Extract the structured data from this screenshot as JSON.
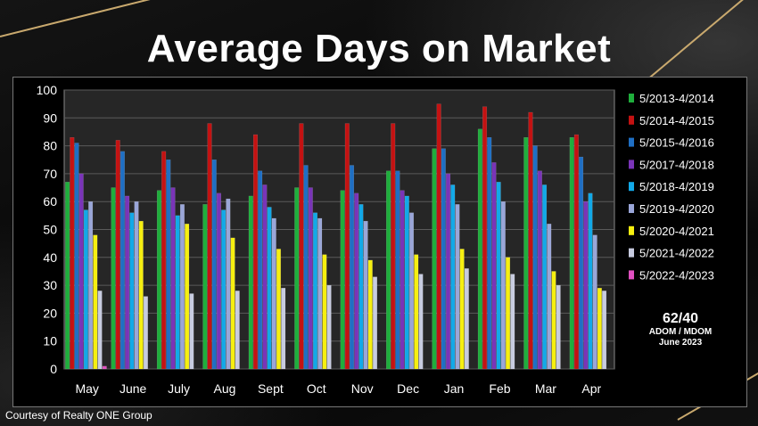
{
  "title": "Average Days on Market",
  "credit": "Courtesy of Realty ONE Group",
  "note": {
    "value": "62/40",
    "line1": "ADOM / MDOM",
    "line2": "June 2023"
  },
  "colors": {
    "series": [
      "#1fae3c",
      "#c41212",
      "#1f6fc4",
      "#7a34b8",
      "#12a9e8",
      "#9aa6d8",
      "#f6ef10",
      "#c8cce0",
      "#e050c0"
    ],
    "plot_bg": "#262626",
    "grid": "#5a5a5a"
  },
  "chart_data": {
    "type": "bar",
    "ylim": [
      0,
      100
    ],
    "yticks": [
      0,
      10,
      20,
      30,
      40,
      50,
      60,
      70,
      80,
      90,
      100
    ],
    "grid": true,
    "legend_position": "right",
    "categories": [
      "May",
      "June",
      "July",
      "Aug",
      "Sept",
      "Oct",
      "Nov",
      "Dec",
      "Jan",
      "Feb",
      "Mar",
      "Apr"
    ],
    "series": [
      {
        "name": "5/2013-4/2014",
        "values": [
          67,
          65,
          64,
          59,
          62,
          65,
          64,
          71,
          79,
          86,
          83,
          83
        ]
      },
      {
        "name": "5/2014-4/2015",
        "values": [
          83,
          82,
          78,
          88,
          84,
          88,
          88,
          88,
          95,
          94,
          92,
          84
        ]
      },
      {
        "name": "5/2015-4/2016",
        "values": [
          81,
          78,
          75,
          75,
          71,
          73,
          73,
          71,
          79,
          83,
          80,
          76
        ]
      },
      {
        "name": "5/2017-4/2018",
        "values": [
          70,
          62,
          65,
          63,
          66,
          65,
          63,
          64,
          70,
          74,
          71,
          60
        ]
      },
      {
        "name": "5/2018-4/2019",
        "values": [
          57,
          56,
          55,
          57,
          58,
          56,
          59,
          62,
          66,
          67,
          66,
          63
        ]
      },
      {
        "name": "5/2019-4/2020",
        "values": [
          60,
          60,
          59,
          61,
          54,
          54,
          53,
          56,
          59,
          60,
          52,
          48
        ]
      },
      {
        "name": "5/2020-4/2021",
        "values": [
          48,
          53,
          52,
          47,
          43,
          41,
          39,
          41,
          43,
          40,
          35,
          29
        ]
      },
      {
        "name": "5/2021-4/2022",
        "values": [
          28,
          26,
          27,
          28,
          29,
          30,
          33,
          34,
          36,
          34,
          30,
          28
        ]
      },
      {
        "name": "5/2022-4/2023",
        "values": [
          1,
          0,
          0,
          0,
          0,
          0,
          0,
          0,
          0,
          0,
          0,
          0
        ]
      }
    ]
  }
}
